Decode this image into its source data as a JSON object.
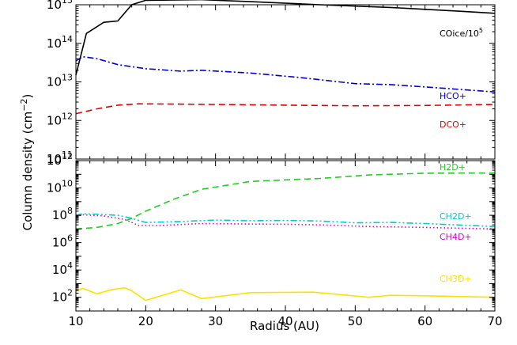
{
  "chart_data": [
    {
      "type": "line",
      "panel": "top",
      "xlim": [
        10,
        70
      ],
      "ylim": [
        100000000000.0,
        1000000000000000.0
      ],
      "yscale": "log",
      "xticks": [
        "10",
        "20",
        "30",
        "40",
        "50",
        "60",
        "70"
      ],
      "yticks": [
        {
          "value": 100000000000.0,
          "base": "10",
          "exp": "11"
        },
        {
          "value": 1000000000000.0,
          "base": "10",
          "exp": "12"
        },
        {
          "value": 10000000000000.0,
          "base": "10",
          "exp": "13"
        },
        {
          "value": 100000000000000.0,
          "base": "10",
          "exp": "14"
        },
        {
          "value": 1000000000000000.0,
          "base": "10",
          "exp": "15"
        }
      ],
      "series": [
        {
          "label_base": "COice/10",
          "label_exp": "5",
          "color": "#000000",
          "dash": "solid",
          "x": [
            10,
            11.5,
            14,
            16,
            18,
            20,
            28,
            35,
            45,
            55,
            65,
            70
          ],
          "y": [
            15000000000000.0,
            180000000000000.0,
            350000000000000.0,
            380000000000000.0,
            1000000000000000.0,
            1300000000000000.0,
            1350000000000000.0,
            1200000000000000.0,
            1000000000000000.0,
            850000000000000.0,
            680000000000000.0,
            600000000000000.0
          ]
        },
        {
          "label": "HCO+",
          "color": "#0000cc",
          "dash": "dashdot",
          "x": [
            10,
            11,
            13,
            16,
            20,
            25,
            28,
            35,
            42,
            50,
            55,
            62,
            70
          ],
          "y": [
            35000000000000.0,
            45000000000000.0,
            40000000000000.0,
            28000000000000.0,
            22000000000000.0,
            19000000000000.0,
            20000000000000.0,
            17000000000000.0,
            13000000000000.0,
            9000000000000.0,
            8500000000000.0,
            7000000000000.0,
            5500000000000.0
          ]
        },
        {
          "label": "DCO+",
          "color": "#dd0000",
          "dash": "dashed",
          "x": [
            10,
            13,
            16,
            19,
            25,
            30,
            40,
            50,
            60,
            70
          ],
          "y": [
            1500000000000.0,
            2000000000000.0,
            2500000000000.0,
            2700000000000.0,
            2650000000000.0,
            2600000000000.0,
            2500000000000.0,
            2400000000000.0,
            2450000000000.0,
            2600000000000.0
          ]
        }
      ]
    },
    {
      "type": "line",
      "panel": "bottom",
      "xlim": [
        10,
        70
      ],
      "ylim": [
        10,
        1000000000000.0
      ],
      "yscale": "log",
      "xlabel": "Radius (AU)",
      "ylabel_base": "Column density (cm",
      "ylabel_exp": "−2",
      "ylabel_end": ")",
      "xticks": [
        "10",
        "20",
        "30",
        "40",
        "50",
        "60",
        "70"
      ],
      "yticks": [
        {
          "value": 100.0,
          "base": "10",
          "exp": "2"
        },
        {
          "value": 10000.0,
          "base": "10",
          "exp": "4"
        },
        {
          "value": 1000000.0,
          "base": "10",
          "exp": "6"
        },
        {
          "value": 100000000.0,
          "base": "10",
          "exp": "8"
        },
        {
          "value": 10000000000.0,
          "base": "10",
          "exp": "10"
        },
        {
          "value": 1000000000000.0,
          "base": "10",
          "exp": "12"
        }
      ],
      "series": [
        {
          "label": "H2D+",
          "color": "#22cc22",
          "dash": "dashed",
          "x": [
            10,
            13,
            16,
            18,
            20,
            24,
            28,
            35,
            45,
            52,
            60,
            70
          ],
          "y": [
            10000000.0,
            13000000.0,
            25000000.0,
            60000000.0,
            200000000.0,
            1500000000.0,
            8000000000.0,
            30000000000.0,
            50000000000.0,
            90000000000.0,
            120000000000.0,
            125000000000.0
          ]
        },
        {
          "label": "CH2D+",
          "color": "#00cccc",
          "dash": "dashdotdot",
          "x": [
            10,
            11,
            13,
            16,
            18,
            20,
            25,
            30,
            35,
            40,
            45,
            50,
            55,
            60,
            70
          ],
          "y": [
            100000000.0,
            130000000.0,
            120000000.0,
            100000000.0,
            60000000.0,
            30000000.0,
            35000000.0,
            45000000.0,
            40000000.0,
            42000000.0,
            38000000.0,
            28000000.0,
            30000000.0,
            25000000.0,
            15000000.0
          ]
        },
        {
          "label": "CH4D+",
          "color": "#dd00dd",
          "dash": "dotted",
          "x": [
            10,
            11,
            14,
            17,
            19,
            22,
            28,
            35,
            40,
            45,
            52,
            60,
            70
          ],
          "y": [
            80000000.0,
            110000000.0,
            90000000.0,
            50000000.0,
            18000000.0,
            18000000.0,
            25000000.0,
            23000000.0,
            22000000.0,
            20000000.0,
            15000000.0,
            13000000.0,
            10000000.0
          ]
        },
        {
          "label": "CH3D+",
          "color": "#ffe000",
          "dash": "solid",
          "x": [
            10,
            11,
            13,
            15,
            17,
            18,
            20,
            25,
            28,
            35,
            44,
            52,
            55,
            60,
            70
          ],
          "y": [
            300,
            450,
            180,
            350,
            500,
            300,
            60,
            350,
            80,
            220,
            240,
            100,
            140,
            130,
            100
          ]
        }
      ]
    }
  ]
}
